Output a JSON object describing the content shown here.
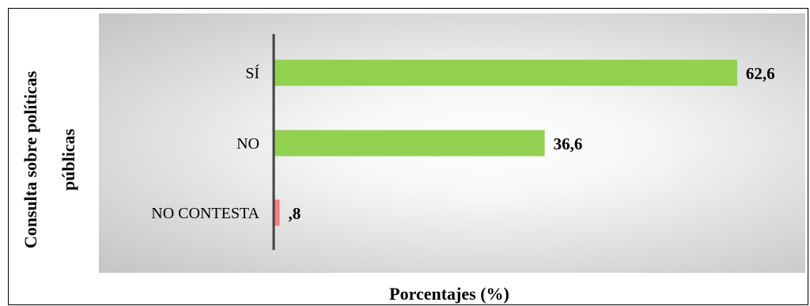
{
  "chart_data": {
    "type": "bar",
    "orientation": "horizontal",
    "categories": [
      "SÍ",
      "NO",
      "NO CONTESTA"
    ],
    "values": [
      62.6,
      36.6,
      0.8
    ],
    "value_labels": [
      "62,6",
      "36,6",
      ",8"
    ],
    "bar_colors": [
      "#92d050",
      "#92d050",
      "#ff7c80"
    ],
    "xlabel": "Porcentajes (%)",
    "ylabel_lines": [
      "Consulta sobre políticas",
      "públicas"
    ],
    "xlim": [
      0,
      66
    ],
    "grid": false,
    "legend": "none"
  }
}
